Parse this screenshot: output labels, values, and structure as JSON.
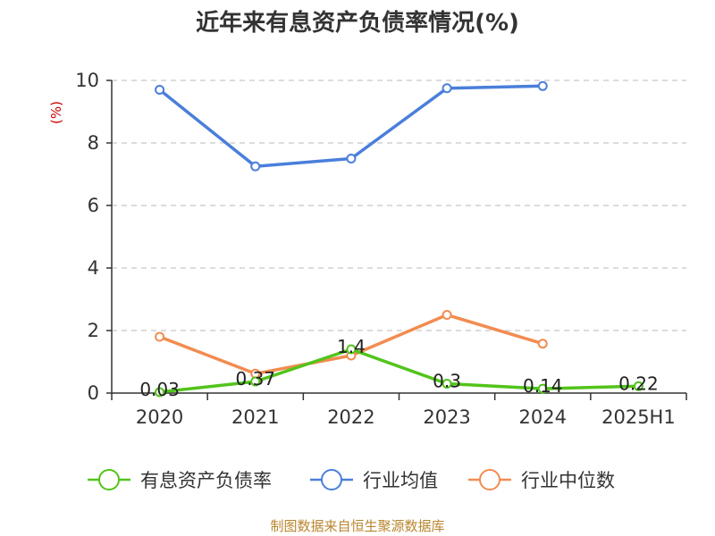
{
  "chart_data": {
    "type": "line",
    "title": "近年来有息资产负债率情况(%)",
    "ylabel": "(%)",
    "xlabel": "",
    "categories": [
      "2020",
      "2021",
      "2022",
      "2023",
      "2024",
      "2025H1"
    ],
    "ylim": [
      0,
      10
    ],
    "yticks": [
      0,
      2,
      4,
      6,
      8,
      10
    ],
    "grid": "horizontal-dashed",
    "legend_position": "bottom",
    "series": [
      {
        "name": "有息资产负债率",
        "color": "#52c41a",
        "values": [
          0.03,
          0.37,
          1.4,
          0.3,
          0.14,
          0.22
        ],
        "data_labels": [
          "0.03",
          "0.37",
          "1.4",
          "0.3",
          "0.14",
          "0.22"
        ]
      },
      {
        "name": "行业均值",
        "color": "#4a7fdb",
        "values": [
          9.7,
          7.25,
          7.5,
          9.75,
          9.82,
          null
        ]
      },
      {
        "name": "行业中位数",
        "color": "#f28c50",
        "values": [
          1.8,
          0.62,
          1.2,
          2.5,
          1.58,
          null
        ]
      }
    ]
  },
  "source": "制图数据来自恒生聚源数据库"
}
